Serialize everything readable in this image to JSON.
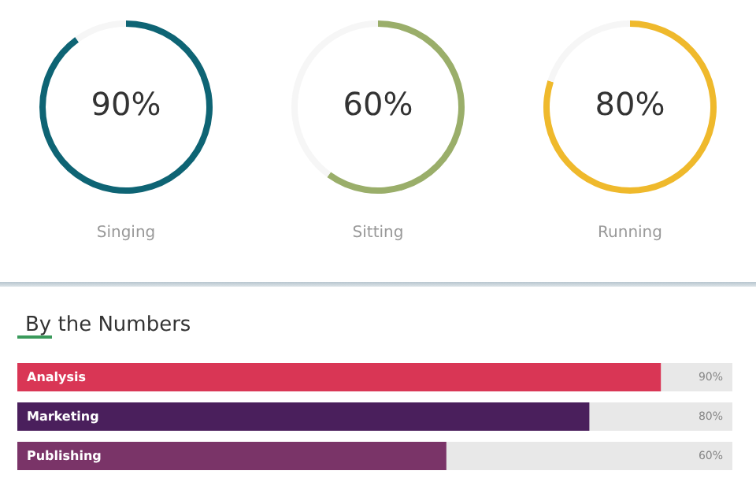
{
  "chart_data": [
    {
      "type": "donut",
      "categories": [
        "Singing",
        null
      ],
      "values": [
        90,
        10
      ],
      "colors": [
        "#0e6474",
        "#f6f6f6"
      ],
      "annotations": [
        "90%"
      ]
    },
    {
      "type": "donut",
      "categories": [
        "Sitting",
        null
      ],
      "values": [
        60,
        40
      ],
      "colors": [
        "#9aae6a",
        "#f6f6f6"
      ],
      "annotations": [
        "60%"
      ]
    },
    {
      "type": "donut",
      "categories": [
        "Running",
        null
      ],
      "values": [
        80,
        20
      ],
      "colors": [
        "#efb92c",
        "#f6f6f6"
      ],
      "annotations": [
        "80%"
      ]
    },
    {
      "type": "bar",
      "orientation": "horizontal",
      "title": "By the Numbers",
      "categories": [
        "Analysis",
        "Marketing",
        "Publishing"
      ],
      "values": [
        90,
        80,
        60
      ],
      "colors": [
        "#d93655",
        "#4a1f5c",
        "#7a3468"
      ],
      "xlim": [
        0,
        100
      ],
      "value_labels": [
        "90%",
        "80%",
        "60%"
      ],
      "tick_labels": "y"
    }
  ]
}
